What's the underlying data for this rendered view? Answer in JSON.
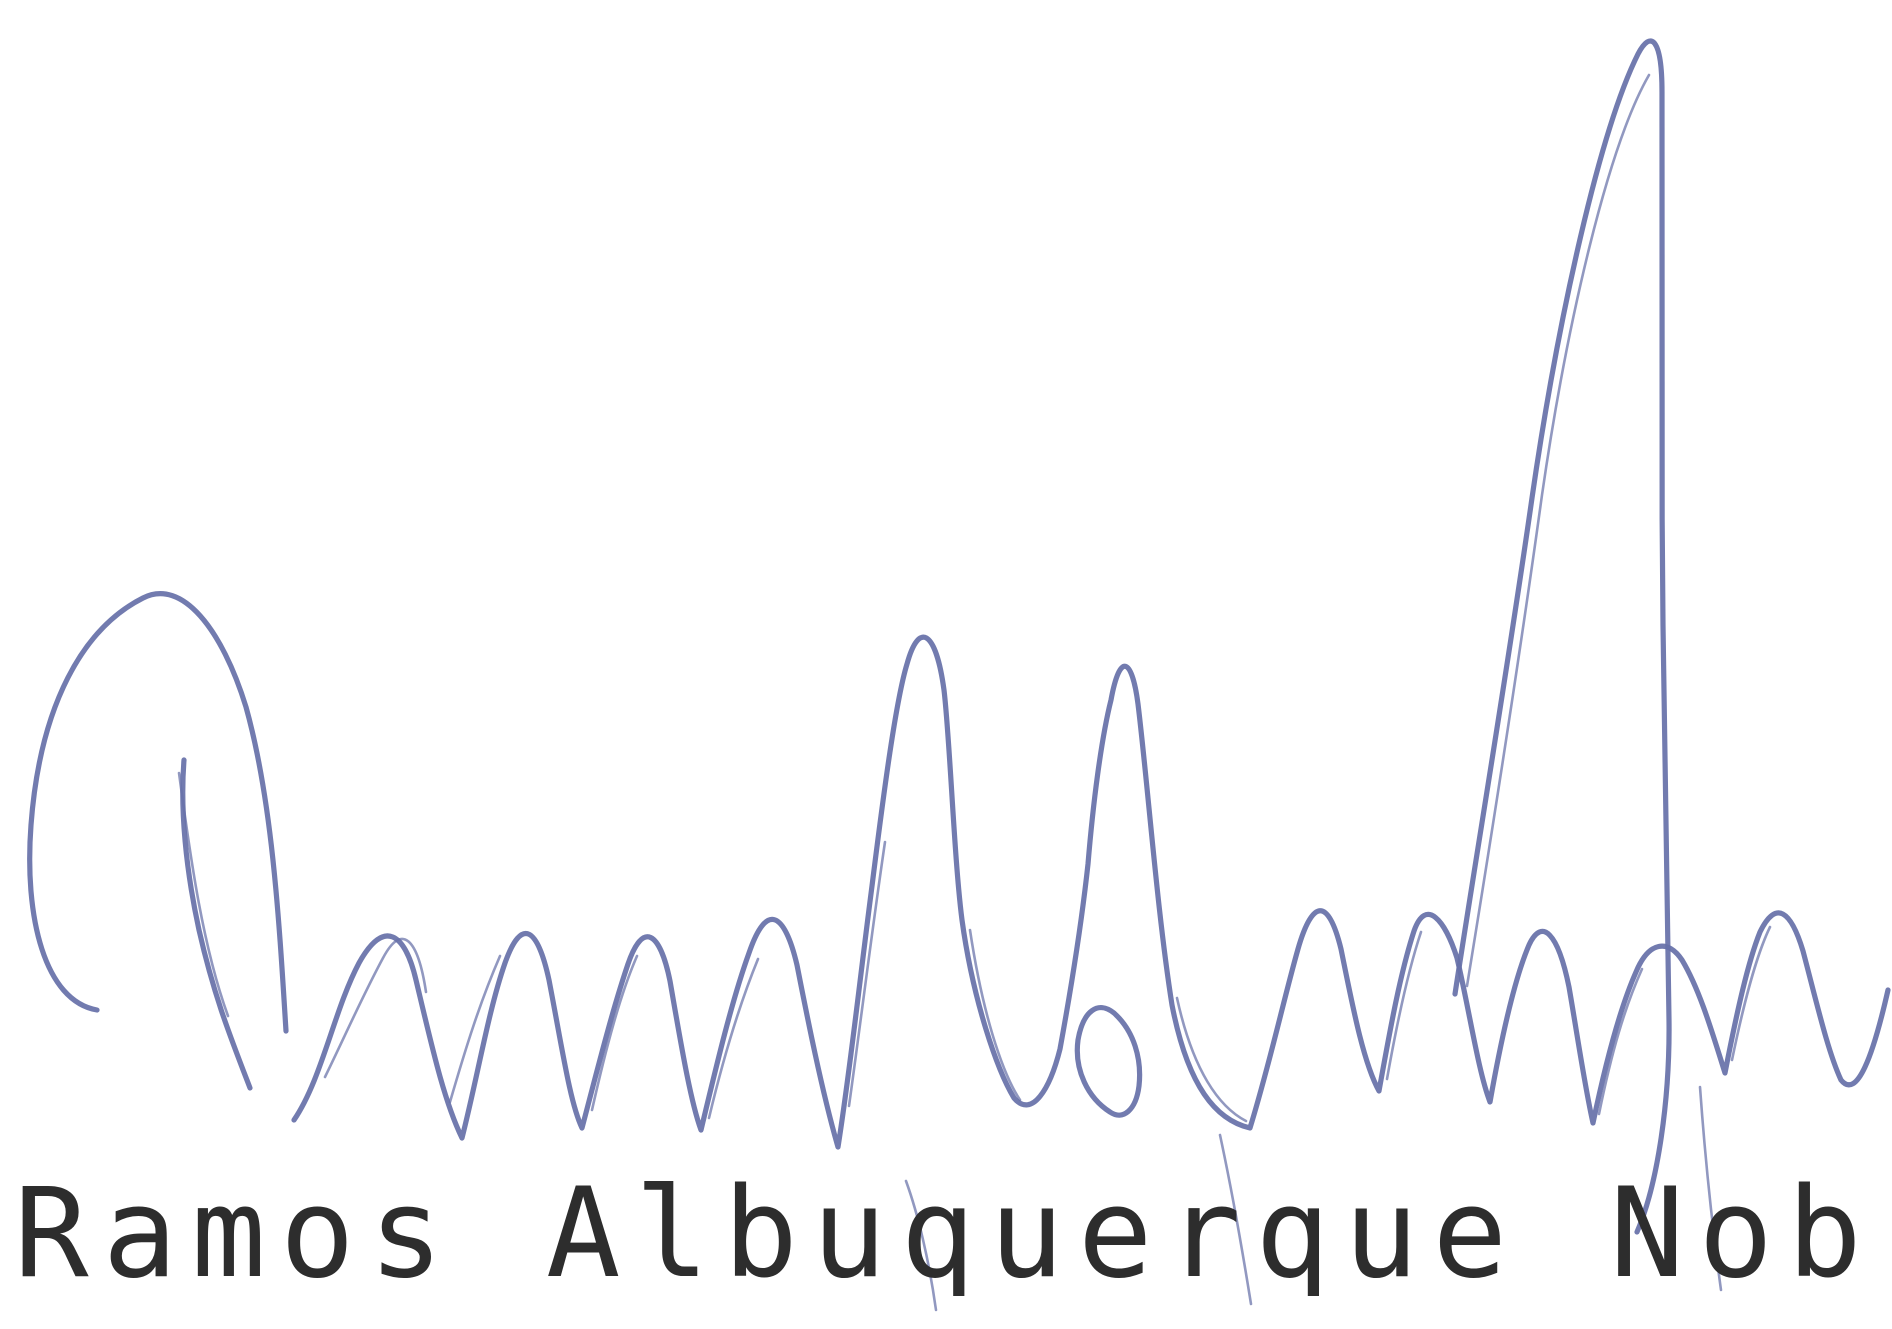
{
  "document": {
    "typed_name": "Ramos Albuquerque Nobre",
    "signature_ink_color": "#6670a8",
    "text_color": "#2d2d2d",
    "background_color": "#ffffff"
  }
}
